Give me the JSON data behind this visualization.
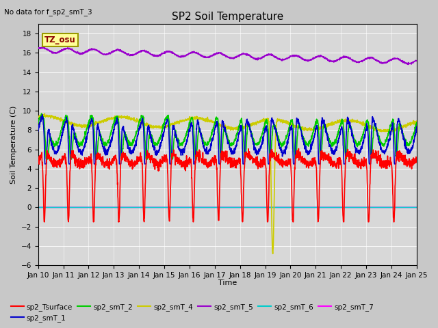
{
  "title": "SP2 Soil Temperature",
  "xlabel": "Time",
  "ylabel": "Soil Temperature (C)",
  "no_data_text": "No data for f_sp2_smT_3",
  "tz_label": "TZ_osu",
  "xlim": [
    0,
    15
  ],
  "ylim": [
    -6,
    19
  ],
  "yticks": [
    -6,
    -4,
    -2,
    0,
    2,
    4,
    6,
    8,
    10,
    12,
    14,
    16,
    18
  ],
  "xtick_labels": [
    "Jan 10",
    "Jan 11",
    "Jan 12",
    "Jan 13",
    "Jan 14",
    "Jan 15",
    "Jan 16",
    "Jan 17",
    "Jan 18",
    "Jan 19",
    "Jan 20",
    "Jan 21",
    "Jan 22",
    "Jan 23",
    "Jan 24",
    "Jan 25"
  ],
  "fig_bg_color": "#c8c8c8",
  "plot_bg_color": "#d8d8d8",
  "grid_color": "#ffffff",
  "series_colors": {
    "sp2_Tsurface": "#ff0000",
    "sp2_smT_1": "#0000cc",
    "sp2_smT_2": "#00cc00",
    "sp2_smT_4": "#cccc00",
    "sp2_smT_5": "#9900cc",
    "sp2_smT_6": "#00cccc",
    "sp2_smT_7": "#ff00ff"
  },
  "title_fontsize": 11,
  "label_fontsize": 8,
  "tick_fontsize": 7.5
}
